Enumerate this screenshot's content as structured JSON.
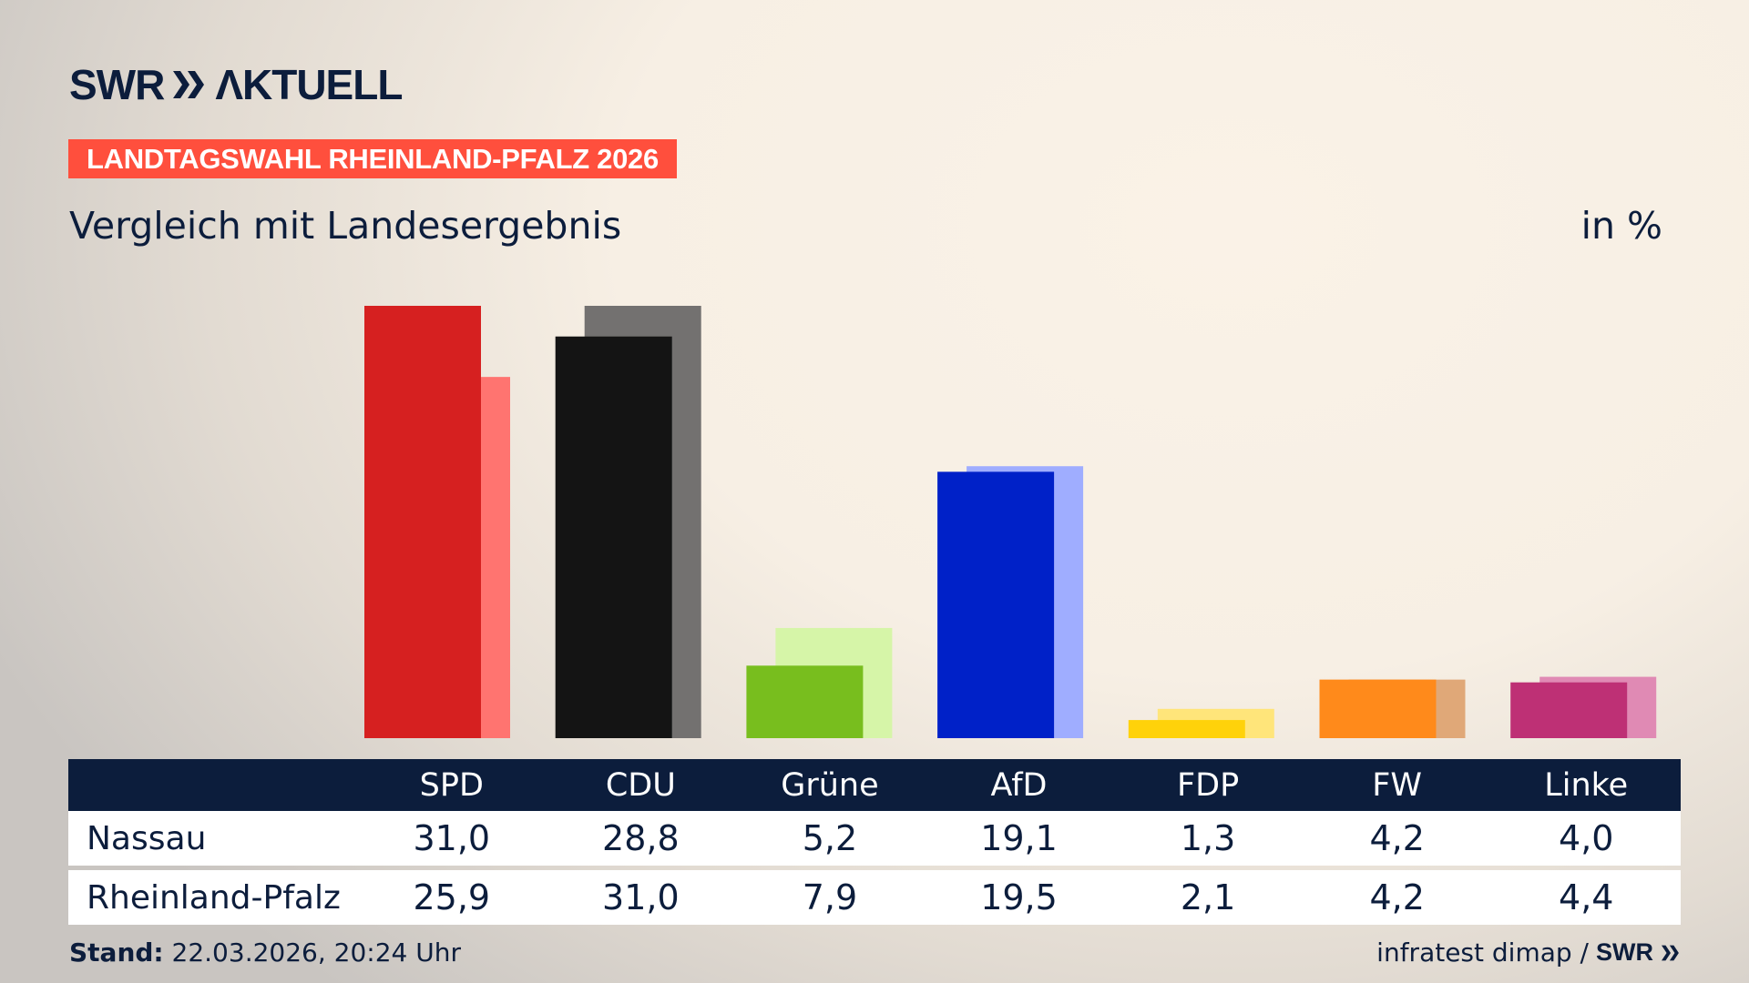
{
  "header": {
    "logo_text": "SWR AKTUELL",
    "banner": "LANDTAGSWAHL RHEINLAND-PFALZ 2026",
    "subtitle": "Vergleich mit Landesergebnis",
    "unit": "in %"
  },
  "footer": {
    "stand_label": "Stand:",
    "stand_value": "22.03.2026, 20:24 Uhr",
    "source": "infratest dimap /",
    "source_logo": "SWR"
  },
  "chart_data": {
    "type": "bar",
    "categories": [
      "SPD",
      "CDU",
      "Grüne",
      "AfD",
      "FDP",
      "FW",
      "Linke"
    ],
    "series": [
      {
        "name": "Nassau",
        "values": [
          31.0,
          28.8,
          5.2,
          19.1,
          1.3,
          4.2,
          4.0
        ],
        "colors": [
          "#d62020",
          "#141414",
          "#78be1e",
          "#0021c8",
          "#ffd20a",
          "#ff8a1b",
          "#be3075"
        ]
      },
      {
        "name": "Rheinland-Pfalz",
        "values": [
          25.9,
          31.0,
          7.9,
          19.5,
          2.1,
          4.2,
          4.4
        ],
        "colors": [
          "#ff7470",
          "#737170",
          "#d6f5a8",
          "#9fadff",
          "#ffe57a",
          "#e0a878",
          "#e08ab4"
        ]
      }
    ],
    "ylabel": "in %",
    "ylim": [
      0,
      31
    ],
    "grid": false,
    "legend": "table-below"
  }
}
